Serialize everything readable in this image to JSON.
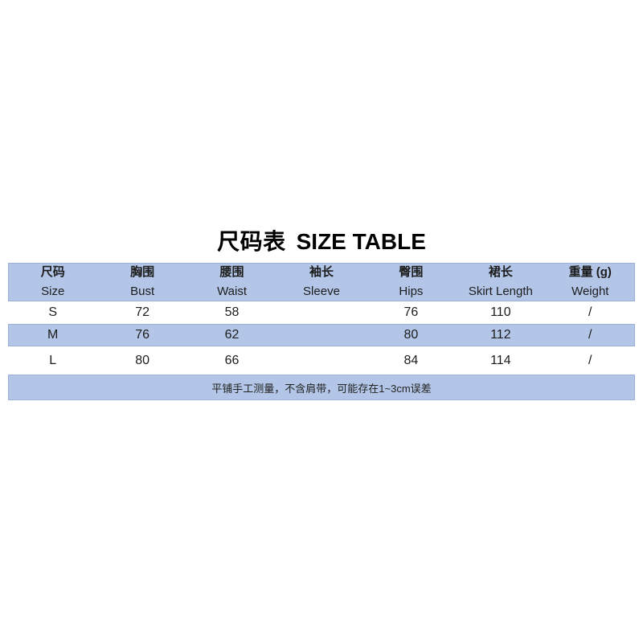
{
  "title": {
    "zh": "尺码表",
    "en": "SIZE TABLE"
  },
  "colors": {
    "row_highlight": "#b3c6e7",
    "text": "#1c1c1c",
    "background": "#ffffff"
  },
  "table": {
    "columns": [
      {
        "zh": "尺码",
        "en": "Size"
      },
      {
        "zh": "胸围",
        "en": "Bust"
      },
      {
        "zh": "腰围",
        "en": "Waist"
      },
      {
        "zh": "袖长",
        "en": "Sleeve"
      },
      {
        "zh": "臀围",
        "en": "Hips"
      },
      {
        "zh": "裙长",
        "en": "Skirt Length"
      },
      {
        "zh": "重量 (g)",
        "en": "Weight"
      }
    ],
    "rows": [
      [
        "S",
        "72",
        "58",
        "",
        "76",
        "110",
        "/"
      ],
      [
        "M",
        "76",
        "62",
        "",
        "80",
        "112",
        "/"
      ],
      [
        "L",
        "80",
        "66",
        "",
        "84",
        "114",
        "/"
      ]
    ],
    "note": "平铺手工测量，不含肩带，可能存在1~3cm误差"
  }
}
